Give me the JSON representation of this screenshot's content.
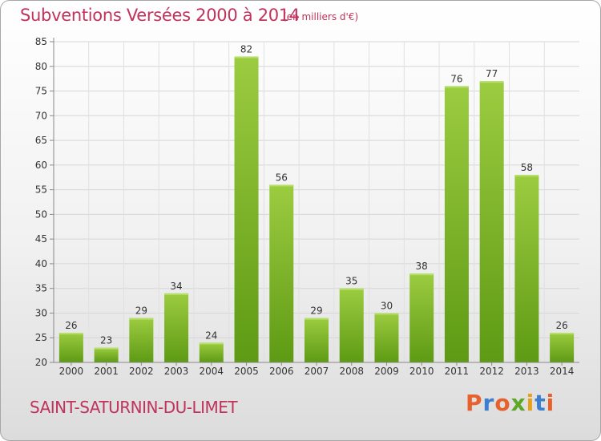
{
  "header": {
    "title": "Subventions Versées 2000 à 2014",
    "unit": "(en milliers d'€)"
  },
  "footer": {
    "place": "SAINT-SATURNIN-DU-LIMET",
    "logo_text": "Proxiti"
  },
  "colors": {
    "title": "#c0335c",
    "bar_light": "#9ccc40",
    "bar_dark": "#5e9a14",
    "logo_letters": [
      "#e8612c",
      "#3a7fd0",
      "#e8612c",
      "#5ea828",
      "#e8a21a",
      "#3a7fd0",
      "#e8612c"
    ]
  },
  "chart_data": {
    "type": "bar",
    "title": "Subventions Versées 2000 à 2014",
    "subtitle": "(en milliers d'€)",
    "categories": [
      "2000",
      "2001",
      "2002",
      "2003",
      "2004",
      "2005",
      "2006",
      "2007",
      "2008",
      "2009",
      "2010",
      "2011",
      "2012",
      "2013",
      "2014"
    ],
    "values": [
      26,
      23,
      29,
      34,
      24,
      82,
      56,
      29,
      35,
      30,
      38,
      76,
      77,
      58,
      26
    ],
    "ylim": [
      20,
      85
    ],
    "yticks": [
      20,
      25,
      30,
      35,
      40,
      45,
      50,
      55,
      60,
      65,
      70,
      75,
      80,
      85
    ],
    "grid": true,
    "data_labels": true
  }
}
